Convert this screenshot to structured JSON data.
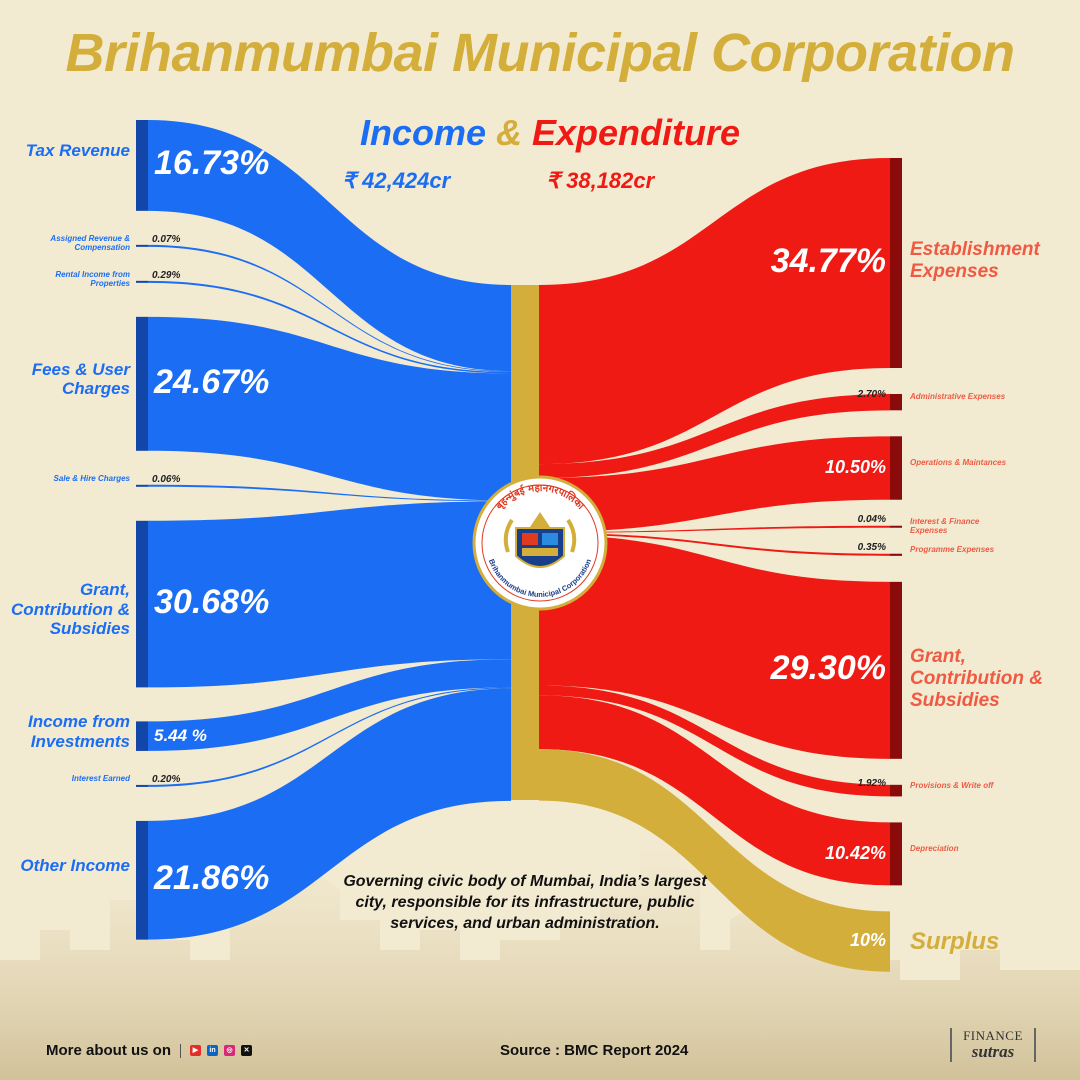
{
  "title": "Brihanmumbai Municipal Corporation",
  "subtitle": {
    "income": "Income",
    "amp": "&",
    "expenditure": "Expenditure"
  },
  "totals": {
    "income": "₹ 42,424cr",
    "expenditure": "₹ 38,182cr"
  },
  "emblem_text": {
    "top": "बृहन्मुंबई महानगरपालिका",
    "bottom": "Brihanmumbai Municipal Corporation"
  },
  "description": "Governing civic body of Mumbai, India’s largest city, responsible for its infrastructure, public services, and urban administration.",
  "footer": {
    "more": "More about us on",
    "source": "Source : BMC Report 2024",
    "brand_top": "FINANCE",
    "brand_bottom": "sutras"
  },
  "colors": {
    "income": "#1b6ef3",
    "expenditure": "#f01a14",
    "surplus": "#d4ae3a",
    "background": "#f3ead2",
    "accent_dark": "#1246a8",
    "exp_dark": "#8b0a0a"
  },
  "icons": [
    "youtube-icon",
    "linkedin-icon",
    "instagram-icon",
    "x-icon"
  ],
  "chart_data": {
    "type": "sankey",
    "center": "Brihanmumbai Municipal Corporation",
    "income_total": "₹ 42,424cr",
    "expenditure_total": "₹ 38,182cr",
    "income": [
      {
        "name": "Tax Revenue",
        "pct_label": "16.73%",
        "value": 16.73
      },
      {
        "name": "Assigned Revenue & Compensation",
        "pct_label": "0.07%",
        "value": 0.07
      },
      {
        "name": "Rental Income from Properties",
        "pct_label": "0.29%",
        "value": 0.29
      },
      {
        "name": "Fees & User Charges",
        "pct_label": "24.67%",
        "value": 24.67
      },
      {
        "name": "Sale & Hire Charges",
        "pct_label": "0.06%",
        "value": 0.06
      },
      {
        "name": "Grant, Contribution & Subsidies",
        "pct_label": "30.68%",
        "value": 30.68
      },
      {
        "name": "Income from Investments",
        "pct_label": "5.44 %",
        "value": 5.44
      },
      {
        "name": "Interest Earned",
        "pct_label": "0.20%",
        "value": 0.2
      },
      {
        "name": "Other Income",
        "pct_label": "21.86%",
        "value": 21.86
      }
    ],
    "expenditure": [
      {
        "name": "Establishment Expenses",
        "pct_label": "34.77%",
        "value": 34.77
      },
      {
        "name": "Administrative Expenses",
        "pct_label": "2.70%",
        "value": 2.7
      },
      {
        "name": "Operations & Maintances",
        "pct_label": "10.50%",
        "value": 10.5
      },
      {
        "name": "Interest & Finance Expenses",
        "pct_label": "0.04%",
        "value": 0.04
      },
      {
        "name": "Programme Expenses",
        "pct_label": "0.35%",
        "value": 0.35
      },
      {
        "name": "Grant, Contribution & Subsidies",
        "pct_label": "29.30%",
        "value": 29.3
      },
      {
        "name": "Provisions & Write off",
        "pct_label": "1.92%",
        "value": 1.92
      },
      {
        "name": "Depreciation",
        "pct_label": "10.42%",
        "value": 10.42
      },
      {
        "name": "Surplus",
        "pct_label": "10%",
        "value": 10
      }
    ]
  }
}
